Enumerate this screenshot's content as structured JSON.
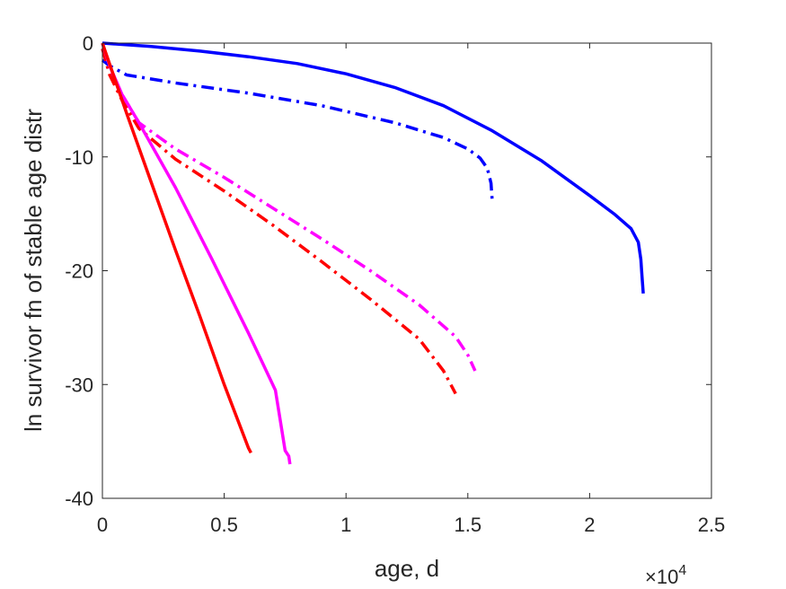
{
  "chart_data": {
    "type": "line",
    "title": "",
    "xlabel": "age, d",
    "ylabel": "ln survivor fn of stable age distr",
    "x_exponent_label": {
      "base": "×10",
      "power": "4"
    },
    "xlim": [
      0,
      25000
    ],
    "ylim": [
      -40,
      0
    ],
    "xticks": [
      0,
      5000,
      10000,
      15000,
      20000,
      25000
    ],
    "xtick_labels": [
      "0",
      "0.5",
      "1",
      "1.5",
      "2",
      "2.5"
    ],
    "yticks": [
      0,
      -10,
      -20,
      -30,
      -40
    ],
    "ytick_labels": [
      "0",
      "-10",
      "-20",
      "-30",
      "-40"
    ],
    "grid": false,
    "box": true,
    "series": [
      {
        "color": "#0000ff",
        "dash": "solid",
        "x": [
          0,
          2000,
          4000,
          6000,
          8000,
          10000,
          12000,
          14000,
          16000,
          18000,
          20000,
          21000,
          21700,
          22000,
          22100,
          22150,
          22200
        ],
        "y": [
          0,
          -0.3,
          -0.7,
          -1.2,
          -1.8,
          -2.7,
          -3.9,
          -5.5,
          -7.7,
          -10.3,
          -13.4,
          -15.0,
          -16.3,
          -17.5,
          -19.0,
          -20.5,
          -22.0
        ]
      },
      {
        "color": "#0000ff",
        "dash": "dashdot",
        "x": [
          0,
          300,
          1000,
          3000,
          6000,
          9000,
          12000,
          14000,
          15000,
          15500,
          15800,
          15950,
          16000
        ],
        "y": [
          -1.5,
          -2.0,
          -2.8,
          -3.5,
          -4.4,
          -5.5,
          -7.0,
          -8.3,
          -9.3,
          -10.1,
          -11.0,
          -12.3,
          -13.8
        ]
      },
      {
        "color": "#ff00ff",
        "dash": "dashdot",
        "x": [
          0,
          300,
          800,
          1500,
          3000,
          5000,
          7000,
          9000,
          11000,
          13000,
          14500,
          15000,
          15300
        ],
        "y": [
          -0.5,
          -2.5,
          -4.5,
          -7.0,
          -9.3,
          -11.8,
          -14.5,
          -17.2,
          -20.0,
          -23.0,
          -25.8,
          -27.4,
          -28.8
        ]
      },
      {
        "color": "#ff0000",
        "dash": "dashdot",
        "x": [
          0,
          300,
          800,
          1500,
          3000,
          5000,
          7000,
          9000,
          11000,
          13000,
          14000,
          14500
        ],
        "y": [
          -0.5,
          -2.8,
          -5.0,
          -7.5,
          -10.2,
          -13.0,
          -16.0,
          -19.2,
          -22.5,
          -26.0,
          -28.8,
          -30.8
        ]
      },
      {
        "color": "#ff00ff",
        "dash": "solid",
        "x": [
          0,
          300,
          800,
          1500,
          3000,
          4500,
          6000,
          7100,
          7500,
          7650,
          7700
        ],
        "y": [
          0,
          -2.0,
          -4.5,
          -7.0,
          -12.7,
          -19.0,
          -25.5,
          -30.5,
          -35.8,
          -36.3,
          -37.0
        ]
      },
      {
        "color": "#ff0000",
        "dash": "solid",
        "x": [
          0,
          1000,
          2000,
          3000,
          4000,
          5000,
          6000,
          6100
        ],
        "y": [
          0,
          -6.2,
          -12.2,
          -18.2,
          -24.0,
          -30.0,
          -35.6,
          -36.0
        ]
      }
    ]
  }
}
